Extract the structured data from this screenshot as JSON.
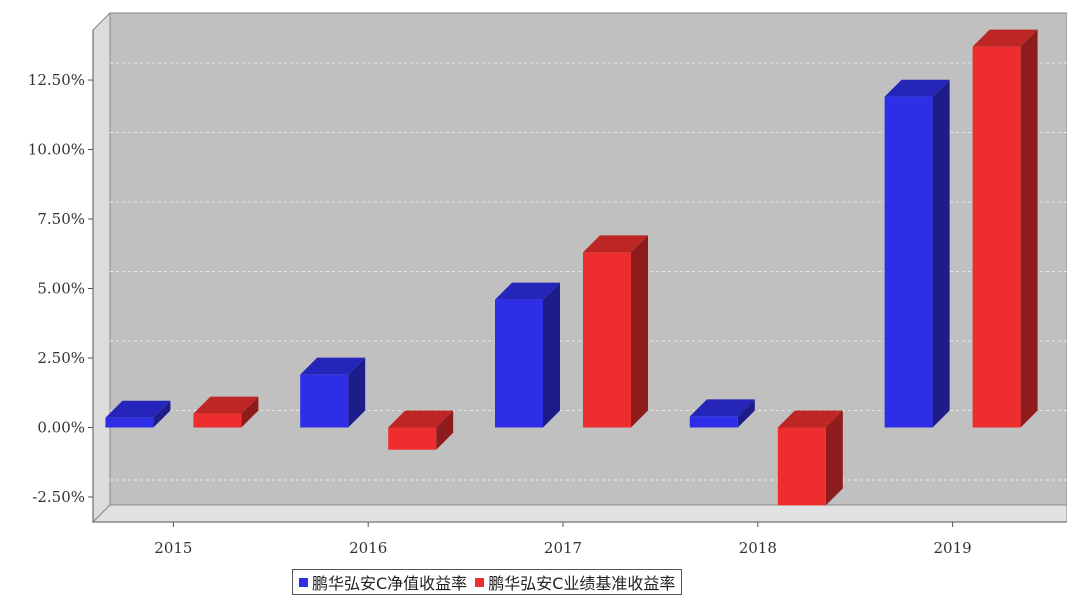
{
  "chart_data": {
    "type": "bar",
    "categories": [
      "2015",
      "2016",
      "2017",
      "2018",
      "2019"
    ],
    "series": [
      {
        "name": "鹏华弘安C净值收益率",
        "color": "#2e2ee8",
        "values": [
          0.35,
          1.9,
          4.6,
          0.4,
          11.9
        ]
      },
      {
        "name": "鹏华弘安C业绩基准收益率",
        "color": "#ee2e2e",
        "values": [
          0.5,
          -0.8,
          6.3,
          -2.8,
          13.7
        ]
      }
    ],
    "y_ticks": [
      "-2.50%",
      "0.00%",
      "2.50%",
      "5.00%",
      "7.50%",
      "10.00%",
      "12.50%"
    ],
    "ylim": [
      -3.4,
      14.3
    ],
    "grid": true,
    "legend_position": "bottom",
    "background_color": "#c0c0c0"
  },
  "legend": {
    "series1_label": "鹏华弘安C净值收益率",
    "series2_label": "鹏华弘安C业绩基准收益率"
  }
}
